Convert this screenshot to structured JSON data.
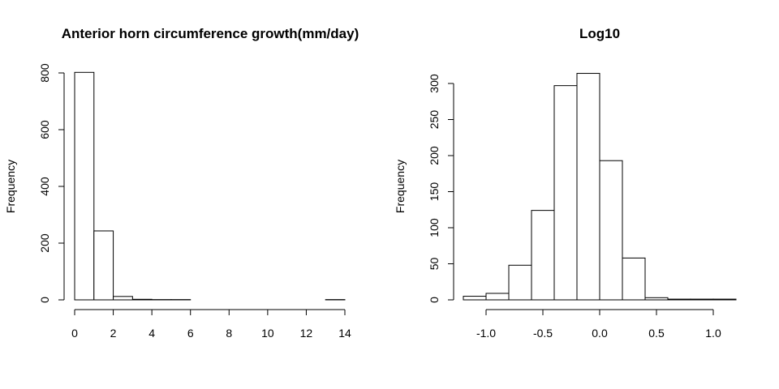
{
  "chart_data": [
    {
      "type": "bar",
      "subtype": "histogram",
      "title": "Anterior horn circumference growth(mm/day)",
      "xlabel": "",
      "ylabel": "Frequency",
      "xlim": [
        0,
        14
      ],
      "ylim": [
        0,
        800
      ],
      "x_ticks": [
        "0",
        "2",
        "4",
        "6",
        "8",
        "10",
        "12",
        "14"
      ],
      "y_ticks": [
        "0",
        "200",
        "400",
        "600",
        "800"
      ],
      "bins": [
        {
          "from": 0,
          "to": 1,
          "count": 802
        },
        {
          "from": 1,
          "to": 2,
          "count": 243
        },
        {
          "from": 2,
          "to": 3,
          "count": 12
        },
        {
          "from": 3,
          "to": 4,
          "count": 2
        },
        {
          "from": 4,
          "to": 5,
          "count": 1
        },
        {
          "from": 5,
          "to": 6,
          "count": 1
        },
        {
          "from": 6,
          "to": 7,
          "count": 0
        },
        {
          "from": 7,
          "to": 8,
          "count": 0
        },
        {
          "from": 8,
          "to": 9,
          "count": 0
        },
        {
          "from": 9,
          "to": 10,
          "count": 0
        },
        {
          "from": 10,
          "to": 11,
          "count": 0
        },
        {
          "from": 11,
          "to": 12,
          "count": 0
        },
        {
          "from": 12,
          "to": 13,
          "count": 0
        },
        {
          "from": 13,
          "to": 14,
          "count": 1
        }
      ]
    },
    {
      "type": "bar",
      "subtype": "histogram",
      "title": "Log10",
      "xlabel": "",
      "ylabel": "Frequency",
      "xlim": [
        -1.0,
        1.0
      ],
      "ylim": [
        0,
        300
      ],
      "x_ticks": [
        "-1.0",
        "-0.5",
        "0.0",
        "0.5",
        "1.0"
      ],
      "y_ticks": [
        "0",
        "50",
        "100",
        "150",
        "200",
        "250",
        "300"
      ],
      "bins": [
        {
          "from": -1.2,
          "to": -1.0,
          "count": 5
        },
        {
          "from": -1.0,
          "to": -0.8,
          "count": 9
        },
        {
          "from": -0.8,
          "to": -0.6,
          "count": 48
        },
        {
          "from": -0.6,
          "to": -0.4,
          "count": 124
        },
        {
          "from": -0.4,
          "to": -0.2,
          "count": 297
        },
        {
          "from": -0.2,
          "to": 0.0,
          "count": 314
        },
        {
          "from": 0.0,
          "to": 0.2,
          "count": 193
        },
        {
          "from": 0.2,
          "to": 0.4,
          "count": 58
        },
        {
          "from": 0.4,
          "to": 0.6,
          "count": 3
        },
        {
          "from": 0.6,
          "to": 0.8,
          "count": 1
        },
        {
          "from": 0.8,
          "to": 1.0,
          "count": 1
        },
        {
          "from": 1.0,
          "to": 1.2,
          "count": 1
        }
      ]
    }
  ]
}
